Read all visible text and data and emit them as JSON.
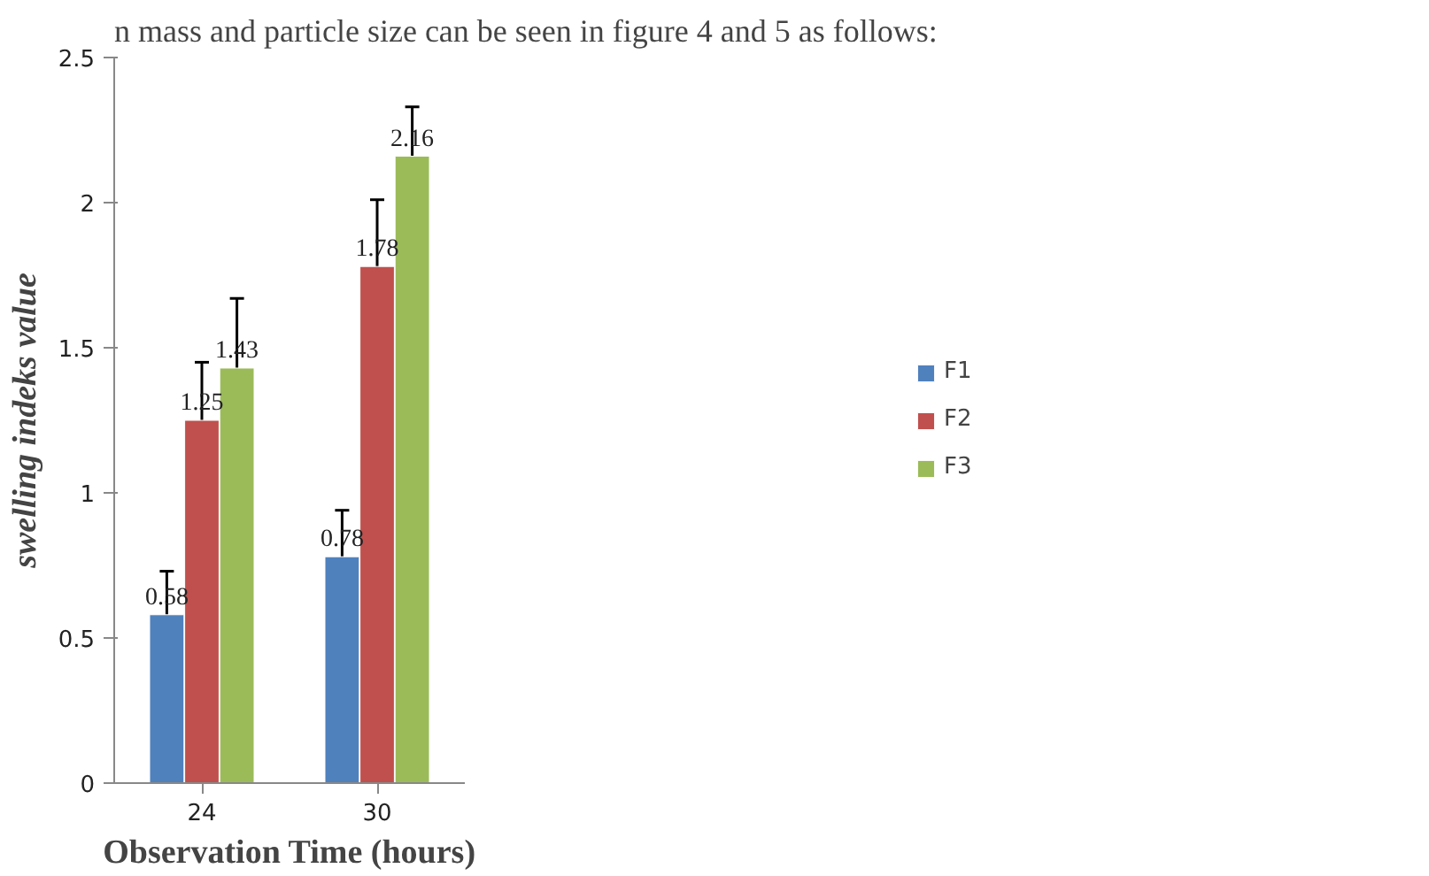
{
  "chart_data": {
    "type": "bar",
    "xlabel": "Observation Time (hours)",
    "ylabel": "swelling indeks value",
    "categories": [
      "24",
      "30"
    ],
    "series": [
      {
        "name": "F1",
        "color": "#4f81bd",
        "values": [
          0.58,
          0.78
        ],
        "errors": [
          0.15,
          0.16
        ]
      },
      {
        "name": "F2",
        "color": "#c0504d",
        "values": [
          1.25,
          1.78
        ],
        "errors": [
          0.2,
          0.23
        ]
      },
      {
        "name": "F3",
        "color": "#9bbb59",
        "values": [
          1.43,
          2.16
        ],
        "errors": [
          0.24,
          0.17
        ]
      }
    ],
    "ylim": [
      0,
      2.5
    ],
    "yticks": [
      0,
      0.5,
      1,
      1.5,
      2,
      2.5
    ],
    "grid": false,
    "legend": "right",
    "data_labels": true,
    "annotations": [
      "n mass and particle size can be seen in figure 4 and 5 as follows:"
    ]
  }
}
